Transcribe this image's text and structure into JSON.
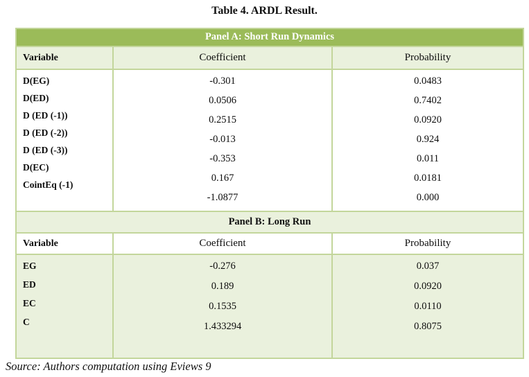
{
  "title": "Table 4. ARDL Result.",
  "source_note": "Source: Authors computation using Eviews 9",
  "colors": {
    "panel_a_band_bg": "#9bbb59",
    "panel_a_band_text": "#ffffff",
    "light_green_fill": "#eaf1dd",
    "border_green": "#c3d69b",
    "text": "#111111"
  },
  "panel_a": {
    "title": "Panel A: Short Run Dynamics",
    "headers": [
      "Variable",
      "Coefficient",
      "Probability"
    ],
    "variables": [
      "D(EG)",
      "D(ED)",
      "D (ED (-1))",
      "D (ED (-2))",
      "D (ED (-3))",
      "D(EC)",
      "CointEq (-1)"
    ],
    "coefficients": [
      "-0.301",
      "0.0506",
      "0.2515",
      "-0.013",
      "-0.353",
      "0.167",
      "-1.0877"
    ],
    "probabilities": [
      "0.0483",
      "0.7402",
      "0.0920",
      "0.924",
      "0.011",
      "0.0181",
      "0.000"
    ]
  },
  "panel_b": {
    "title": "Panel B: Long Run",
    "headers": [
      "Variable",
      "Coefficient",
      "Probability"
    ],
    "variables": [
      "EG",
      "ED",
      "EC",
      "C"
    ],
    "coefficients": [
      "-0.276",
      "0.189",
      "0.1535",
      "1.433294"
    ],
    "probabilities": [
      "0.037",
      "0.0920",
      "0.0110",
      "0.8075"
    ]
  }
}
